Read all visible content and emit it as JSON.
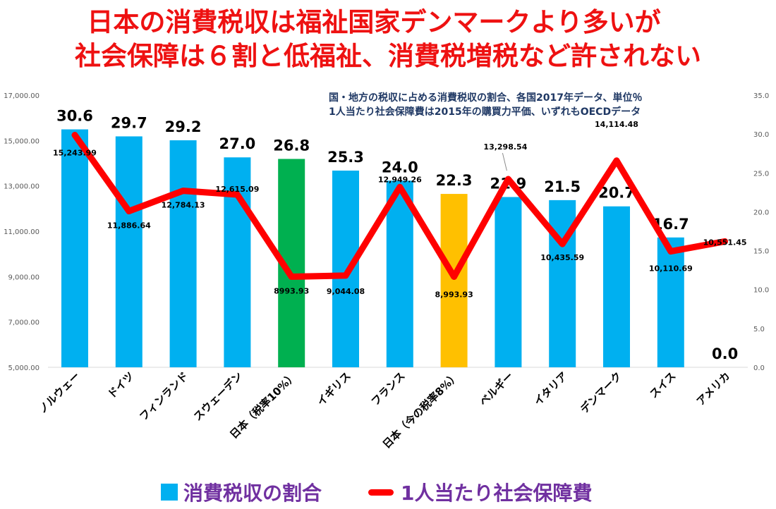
{
  "header": {
    "title_line1": "日本の消費税収は福祉国家デンマークより多いが",
    "title_line2": "社会保障は６割と低福祉、消費税増税など許されない",
    "note_line1": "国・地方の税収に占める消費税収の割合、各国2017年データ、単位％",
    "note_line2": "1人当たり社会保障費は2015年の購買力平価、いずれもOECDデータ"
  },
  "colors": {
    "bar_default": "#00b0f0",
    "bar_japan_10": "#00b050",
    "bar_japan_8": "#ffc000",
    "line": "#ff0000",
    "title": "#ee1111",
    "note": "#1f3864",
    "legend_text": "#7030a0"
  },
  "chart_data": {
    "type": "bar",
    "categories": [
      "ノルウェー",
      "ドイツ",
      "フィンランド",
      "スウェーデン",
      "日本（税率10%）",
      "イギリス",
      "フランス",
      "日本（今の税率8%）",
      "ベルギー",
      "イタリア",
      "デンマーク",
      "スイス",
      "アメリカ"
    ],
    "series": [
      {
        "name": "消費税収の割合",
        "type": "bar",
        "axis": "right",
        "values": [
          30.6,
          29.7,
          29.2,
          27.0,
          26.8,
          25.3,
          24.0,
          22.3,
          21.9,
          21.5,
          20.7,
          16.7,
          0.0
        ],
        "labels": [
          "30.6",
          "29.7",
          "29.2",
          "27.0",
          "26.8",
          "25.3",
          "24.0",
          "22.3",
          "21.9",
          "21.5",
          "20.7",
          "16.7",
          "0.0"
        ]
      },
      {
        "name": "1人当たり社会保障費",
        "type": "line",
        "axis": "left",
        "values": [
          15243.99,
          11886.64,
          12784.13,
          12615.09,
          8993.93,
          9044.08,
          12949.26,
          8993.93,
          13298.54,
          10435.59,
          14114.48,
          10110.69,
          10551.45
        ],
        "labels": [
          "15,243.99",
          "11,886.64",
          "12,784.13",
          "12,615.09",
          "8993.93",
          "9,044.08",
          "12,949.26",
          "8,993.93",
          "13,298.54",
          "10,435.59",
          "14,114.48",
          "10,110.69",
          "10,551.45"
        ]
      }
    ],
    "y_left": {
      "min": 5000,
      "max": 17000,
      "ticks": [
        "5,000.00",
        "7,000.00",
        "9,000.00",
        "11,000.00",
        "13,000.00",
        "15,000.00",
        "17,000.00"
      ]
    },
    "y_right": {
      "min": 0,
      "max": 35,
      "ticks": [
        "0.0",
        "5.0",
        "10.0",
        "15.0",
        "20.0",
        "25.0",
        "30.0",
        "35.0"
      ]
    },
    "grid": false
  },
  "legend": {
    "bar_label": "消費税収の割合",
    "line_label": "1人当たり社会保障費"
  }
}
